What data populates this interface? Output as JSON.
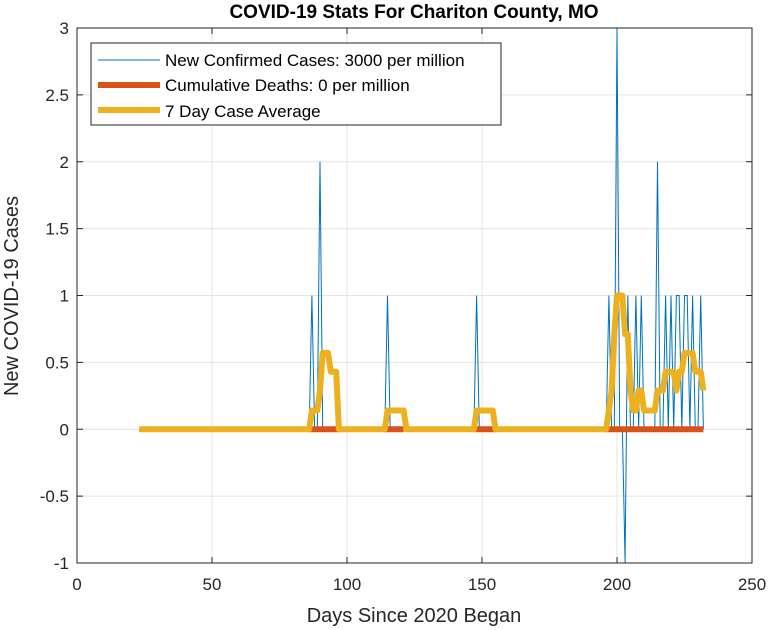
{
  "chart_data": {
    "type": "line",
    "title": "COVID-19 Stats For Chariton County, MO",
    "xlabel": "Days Since 2020 Began",
    "ylabel": "New COVID-19 Cases",
    "xlim": [
      0,
      250
    ],
    "ylim": [
      -1,
      3
    ],
    "xticks": [
      0,
      50,
      100,
      150,
      200,
      250
    ],
    "yticks": [
      -1,
      -0.5,
      0,
      0.5,
      1,
      1.5,
      2,
      2.5,
      3
    ],
    "xtick_labels": [
      "0",
      "50",
      "100",
      "150",
      "200",
      "250"
    ],
    "ytick_labels": [
      "-1",
      "-0.5",
      "0",
      "0.5",
      "1",
      "1.5",
      "2",
      "2.5",
      "3"
    ],
    "grid": true,
    "legend_position": "top-left",
    "series": [
      {
        "name": "New Confirmed Cases: 3000 per million",
        "color": "#0072BD",
        "style": "thin",
        "x": [
          23,
          86,
          87,
          88,
          89,
          90,
          91,
          92,
          114,
          115,
          116,
          147,
          148,
          149,
          196,
          197,
          198,
          199,
          200,
          201,
          202,
          203,
          204,
          205,
          206,
          207,
          208,
          209,
          210,
          211,
          212,
          213,
          214,
          215,
          216,
          217,
          218,
          219,
          220,
          221,
          222,
          223,
          224,
          225,
          226,
          227,
          228,
          229,
          230,
          231,
          232
        ],
        "y": [
          0,
          0,
          1,
          0,
          0,
          2,
          0,
          0,
          0,
          1,
          0,
          0,
          1,
          0,
          0,
          1,
          0,
          0,
          3,
          0,
          0,
          -1,
          1,
          0,
          0,
          1,
          0,
          1,
          0,
          0,
          0,
          0,
          0,
          2,
          0,
          0,
          1,
          0,
          1,
          0,
          1,
          1,
          0,
          1,
          1,
          0,
          1,
          0,
          0,
          1,
          0
        ]
      },
      {
        "name": "Cumulative Deaths: 0 per million",
        "color": "#D95319",
        "style": "thick",
        "x": [
          86,
          98,
          114,
          121,
          147,
          155,
          196,
          232
        ],
        "y": [
          0,
          0,
          0,
          0,
          0,
          0,
          0,
          0
        ],
        "segments": [
          [
            86,
            98
          ],
          [
            114,
            121
          ],
          [
            147,
            155
          ],
          [
            196,
            232
          ]
        ]
      },
      {
        "name": "7 Day Case Average",
        "color": "#EDB120",
        "style": "thick",
        "x": [
          23,
          86,
          87,
          89,
          90,
          91,
          92,
          93,
          94,
          95,
          96,
          97,
          114,
          115,
          121,
          122,
          147,
          148,
          154,
          155,
          196,
          197,
          198,
          199,
          200,
          201,
          202,
          203,
          204,
          205,
          206,
          207,
          208,
          209,
          210,
          211,
          212,
          213,
          214,
          215,
          216,
          217,
          218,
          219,
          220,
          221,
          222,
          223,
          224,
          225,
          226,
          227,
          228,
          229,
          230,
          231,
          232
        ],
        "y": [
          0,
          0,
          0.14,
          0.14,
          0.29,
          0.57,
          0.57,
          0.57,
          0.43,
          0.43,
          0.43,
          0,
          0,
          0.14,
          0.14,
          0,
          0,
          0.14,
          0.14,
          0,
          0,
          0.14,
          0.29,
          0.71,
          1.0,
          1.0,
          1.0,
          0.71,
          0.71,
          0.29,
          0.14,
          0.14,
          0.29,
          0.29,
          0.14,
          0.14,
          0.14,
          0.14,
          0.14,
          0.29,
          0.29,
          0.29,
          0.43,
          0.43,
          0.43,
          0.43,
          0.29,
          0.43,
          0.43,
          0.57,
          0.57,
          0.57,
          0.57,
          0.43,
          0.43,
          0.43,
          0.29
        ]
      }
    ]
  }
}
